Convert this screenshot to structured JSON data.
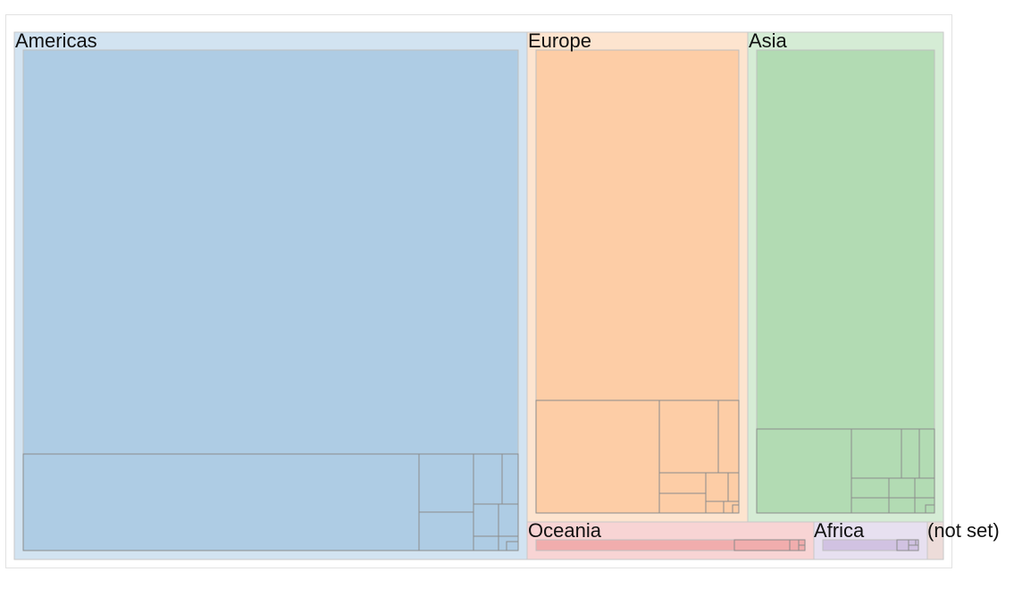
{
  "chart_data": {
    "type": "treemap",
    "title": "",
    "regions": [
      {
        "name": "Americas",
        "fill": "#aecce4",
        "outer": "#d2e3f1",
        "children": [
          {
            "block": "top",
            "value": 45.2
          },
          {
            "block": "bottom-left",
            "value": 10.8
          },
          {
            "block": "small-1",
            "value": 2.0
          },
          {
            "block": "small-2",
            "value": 1.3
          },
          {
            "block": "small-3",
            "value": 0.9
          },
          {
            "block": "small-4",
            "value": 0.6
          },
          {
            "block": "small-5",
            "value": 0.2
          }
        ]
      },
      {
        "name": "Europe",
        "fill": "#fdcda6",
        "outer": "#fde4cf",
        "children": [
          {
            "block": "top",
            "value": 14.0
          },
          {
            "block": "a",
            "value": 4.4
          },
          {
            "block": "b",
            "value": 1.5
          },
          {
            "block": "c",
            "value": 0.7
          },
          {
            "block": "d",
            "value": 0.5
          },
          {
            "block": "e",
            "value": 0.3
          }
        ]
      },
      {
        "name": "Asia",
        "fill": "#b2dbb3",
        "outer": "#d5ecd5",
        "children": [
          {
            "block": "top",
            "value": 12.5
          },
          {
            "block": "a",
            "value": 2.8
          },
          {
            "block": "b",
            "value": 1.2
          },
          {
            "block": "c",
            "value": 0.5
          },
          {
            "block": "d",
            "value": 0.4
          }
        ]
      },
      {
        "name": "Oceania",
        "fill": "#f1adad",
        "outer": "#f8d4d4",
        "children": [
          {
            "block": "a",
            "value": 1.8
          },
          {
            "block": "b",
            "value": 0.6
          }
        ]
      },
      {
        "name": "Africa",
        "fill": "#d1c2e2",
        "outer": "#e7e0f0",
        "children": [
          {
            "block": "a",
            "value": 0.7
          },
          {
            "block": "b",
            "value": 0.2
          }
        ]
      },
      {
        "name": "(not set)",
        "fill": "#e8dbd8",
        "outer": "#eddcd9",
        "children": []
      }
    ]
  }
}
